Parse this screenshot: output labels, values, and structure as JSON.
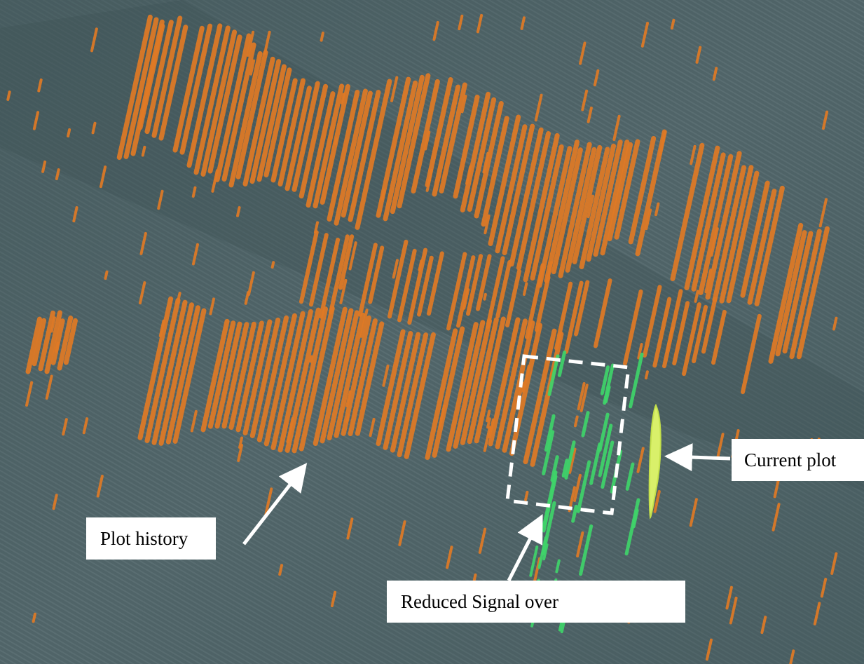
{
  "annotations": {
    "plot_history": "Plot history",
    "reduced_signal": "Reduced Signal over",
    "current_plot": "Current plot"
  },
  "colors": {
    "screen_background": "#4f6367",
    "plot_history": "#e07a25",
    "reduced_signal": "#3fd46a",
    "current_plot": "#d9f06a",
    "annotation_arrow": "#ffffff",
    "label_background": "#ffffff"
  }
}
